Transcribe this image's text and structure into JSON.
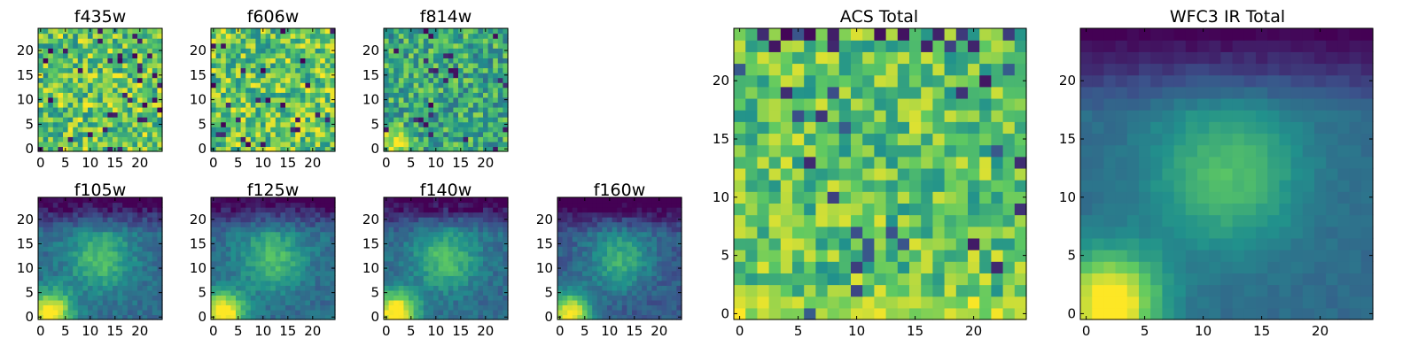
{
  "chart_data": {
    "type": "heatmap",
    "colormap": "viridis",
    "colormap_stops": [
      "#440154",
      "#3b528b",
      "#21918c",
      "#5ec962",
      "#fde725"
    ],
    "grid_size": 25,
    "panels": [
      {
        "id": "f435w",
        "title": "f435w",
        "kind": "noise",
        "xticks": [
          0,
          5,
          10,
          15,
          20
        ],
        "yticks": [
          0,
          5,
          10,
          15,
          20
        ],
        "xlim": [
          0,
          24
        ],
        "ylim": [
          0,
          24
        ]
      },
      {
        "id": "f606w",
        "title": "f606w",
        "kind": "noise",
        "xticks": [
          0,
          5,
          10,
          15,
          20
        ],
        "yticks": [
          0,
          5,
          10,
          15,
          20
        ],
        "xlim": [
          0,
          24
        ],
        "ylim": [
          0,
          24
        ]
      },
      {
        "id": "f814w",
        "title": "f814w",
        "kind": "noise_lowleft",
        "xticks": [
          0,
          5,
          10,
          15,
          20
        ],
        "yticks": [
          0,
          5,
          10,
          15,
          20
        ],
        "xlim": [
          0,
          24
        ],
        "ylim": [
          0,
          24
        ]
      },
      {
        "id": "f105w",
        "title": "f105w",
        "kind": "ir",
        "xticks": [
          0,
          5,
          10,
          15,
          20
        ],
        "yticks": [
          0,
          5,
          10,
          15,
          20
        ],
        "xlim": [
          0,
          24
        ],
        "ylim": [
          0,
          24
        ]
      },
      {
        "id": "f125w",
        "title": "f125w",
        "kind": "ir",
        "xticks": [
          0,
          5,
          10,
          15,
          20
        ],
        "yticks": [
          0,
          5,
          10,
          15,
          20
        ],
        "xlim": [
          0,
          24
        ],
        "ylim": [
          0,
          24
        ]
      },
      {
        "id": "f140w",
        "title": "f140w",
        "kind": "ir",
        "xticks": [
          0,
          5,
          10,
          15,
          20
        ],
        "yticks": [
          0,
          5,
          10,
          15,
          20
        ],
        "xlim": [
          0,
          24
        ],
        "ylim": [
          0,
          24
        ]
      },
      {
        "id": "f160w",
        "title": "f160w",
        "kind": "ir_dark",
        "xticks": [
          0,
          5,
          10,
          15,
          20
        ],
        "yticks": [
          0,
          5,
          10,
          15,
          20
        ],
        "xlim": [
          0,
          24
        ],
        "ylim": [
          0,
          24
        ]
      },
      {
        "id": "acs-total",
        "title": "ACS Total",
        "kind": "acs_total",
        "xticks": [
          0,
          5,
          10,
          15,
          20
        ],
        "yticks": [
          0,
          5,
          10,
          15,
          20
        ],
        "xlim": [
          0,
          24
        ],
        "ylim": [
          0,
          24
        ]
      },
      {
        "id": "wfc3-ir-total",
        "title": "WFC3 IR Total",
        "kind": "ir_smooth",
        "xticks": [
          0,
          5,
          10,
          15,
          20
        ],
        "yticks": [
          0,
          5,
          10,
          15,
          20
        ],
        "xlim": [
          0,
          24
        ],
        "ylim": [
          0,
          24
        ]
      }
    ]
  }
}
